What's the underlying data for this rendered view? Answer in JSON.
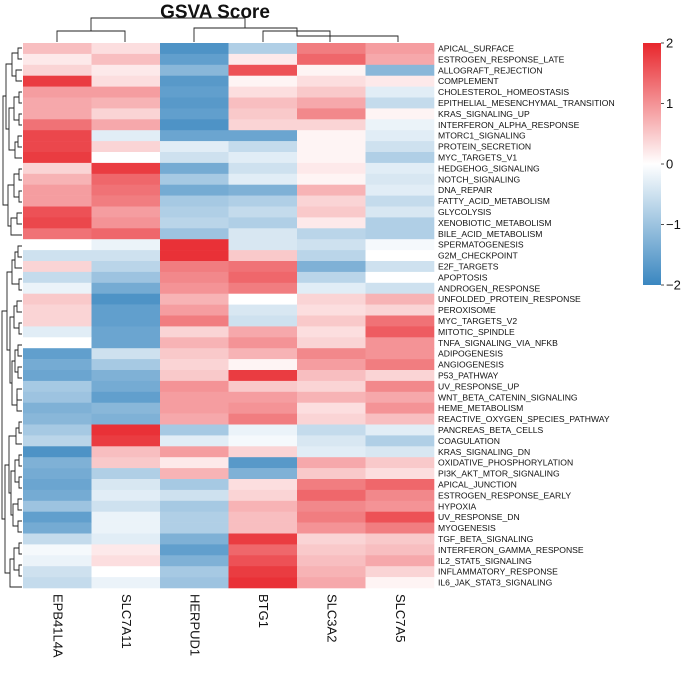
{
  "chart_data": {
    "type": "heatmap",
    "title": "GSVA Score",
    "columns": [
      "EPB41L4A",
      "SLC7A11",
      "HERPUD1",
      "BTG1",
      "SLC3A2",
      "SLC7A5"
    ],
    "rows": [
      "APICAL_SURFACE",
      "ESTROGEN_RESPONSE_LATE",
      "ALLOGRAFT_REJECTION",
      "COMPLEMENT",
      "CHOLESTEROL_HOMEOSTASIS",
      "EPITHELIAL_MESENCHYMAL_TRANSITION",
      "KRAS_SIGNALING_UP",
      "INTERFERON_ALPHA_RESPONSE",
      "MTORC1_SIGNALING",
      "PROTEIN_SECRETION",
      "MYC_TARGETS_V1",
      "HEDGEHOG_SIGNALING",
      "NOTCH_SIGNALING",
      "DNA_REPAIR",
      "FATTY_ACID_METABOLISM",
      "GLYCOLYSIS",
      "XENOBIOTIC_METABOLISM",
      "BILE_ACID_METABOLISM",
      "SPERMATOGENESIS",
      "G2M_CHECKPOINT",
      "E2F_TARGETS",
      "APOPTOSIS",
      "ANDROGEN_RESPONSE",
      "UNFOLDED_PROTEIN_RESPONSE",
      "PEROXISOME",
      "MYC_TARGETS_V2",
      "MITOTIC_SPINDLE",
      "TNFA_SIGNALING_VIA_NFKB",
      "ADIPOGENESIS",
      "ANGIOGENESIS",
      "P53_PATHWAY",
      "UV_RESPONSE_UP",
      "WNT_BETA_CATENIN_SIGNALING",
      "HEME_METABOLISM",
      "REACTIVE_OXYGEN_SPECIES_PATHWAY",
      "PANCREAS_BETA_CELLS",
      "COAGULATION",
      "KRAS_SIGNALING_DN",
      "OXIDATIVE_PHOSPHORYLATION",
      "PI3K_AKT_MTOR_SIGNALING",
      "APICAL_JUNCTION",
      "ESTROGEN_RESPONSE_EARLY",
      "HYPOXIA",
      "UV_RESPONSE_DN",
      "MYOGENESIS",
      "TGF_BETA_SIGNALING",
      "INTERFERON_GAMMA_RESPONSE",
      "IL2_STAT5_SIGNALING",
      "INFLAMMATORY_RESPONSE",
      "IL6_JAK_STAT3_SIGNALING"
    ],
    "values": [
      [
        0.6,
        0.3,
        -1.8,
        -0.8,
        1.2,
        0.9
      ],
      [
        0.2,
        0.6,
        -1.6,
        0.2,
        1.4,
        0.8
      ],
      [
        0.4,
        0.2,
        -1.2,
        1.6,
        0.1,
        -1.2
      ],
      [
        1.8,
        0.3,
        -1.7,
        0.1,
        0.3,
        0.2
      ],
      [
        0.9,
        0.9,
        -1.6,
        0.3,
        0.5,
        -0.3
      ],
      [
        0.8,
        0.7,
        -1.7,
        0.6,
        0.8,
        -0.6
      ],
      [
        0.8,
        0.4,
        -1.6,
        0.5,
        1.1,
        0.1
      ],
      [
        1.3,
        0.8,
        -1.8,
        0.4,
        0.4,
        -0.2
      ],
      [
        1.7,
        -0.3,
        -1.5,
        -1.5,
        0.1,
        -0.3
      ],
      [
        1.7,
        0.4,
        -0.3,
        -0.6,
        0.1,
        -0.5
      ],
      [
        1.8,
        0.0,
        -0.5,
        -0.3,
        0.1,
        -0.8
      ],
      [
        0.4,
        1.8,
        -1.4,
        -0.5,
        0.2,
        -0.3
      ],
      [
        0.7,
        1.4,
        -0.9,
        -0.3,
        0.1,
        -0.4
      ],
      [
        0.9,
        1.3,
        -1.4,
        -1.3,
        0.7,
        -0.3
      ],
      [
        0.9,
        1.2,
        -0.9,
        -0.8,
        0.4,
        -0.6
      ],
      [
        1.6,
        0.9,
        -0.8,
        -0.6,
        0.5,
        -0.4
      ],
      [
        1.7,
        1.0,
        -0.7,
        -0.8,
        0.2,
        -0.8
      ],
      [
        1.3,
        1.4,
        -1.0,
        -0.4,
        -0.7,
        -0.8
      ],
      [
        0.0,
        -0.2,
        1.9,
        -0.4,
        -0.5,
        -0.1
      ],
      [
        -0.5,
        -0.5,
        1.9,
        0.5,
        -0.7,
        0.0
      ],
      [
        0.4,
        -0.7,
        1.2,
        1.3,
        -1.3,
        -0.5
      ],
      [
        -0.6,
        -1.0,
        1.1,
        1.4,
        -0.7,
        0.0
      ],
      [
        -0.2,
        -1.4,
        1.0,
        1.2,
        -0.3,
        -0.5
      ],
      [
        0.5,
        -1.8,
        0.7,
        0.0,
        0.4,
        0.7
      ],
      [
        0.4,
        -1.6,
        0.9,
        -0.4,
        0.3,
        0.4
      ],
      [
        0.4,
        -1.6,
        1.2,
        -0.5,
        0.5,
        1.3
      ],
      [
        -0.3,
        -1.5,
        0.4,
        0.8,
        0.3,
        1.5
      ],
      [
        0.0,
        -1.5,
        0.7,
        1.0,
        0.4,
        1.0
      ],
      [
        -1.6,
        -0.5,
        0.5,
        0.7,
        1.1,
        1.0
      ],
      [
        -1.4,
        -0.9,
        0.4,
        0.1,
        0.9,
        1.2
      ],
      [
        -1.5,
        -1.3,
        0.5,
        1.8,
        0.6,
        0.4
      ],
      [
        -0.9,
        -1.4,
        1.0,
        0.5,
        0.4,
        1.1
      ],
      [
        -1.0,
        -1.6,
        0.9,
        0.9,
        0.7,
        0.8
      ],
      [
        -1.3,
        -1.2,
        0.9,
        1.0,
        0.3,
        1.0
      ],
      [
        -1.2,
        -1.3,
        0.8,
        1.2,
        0.4,
        0.6
      ],
      [
        -0.9,
        1.9,
        -0.9,
        -0.2,
        -0.6,
        -0.3
      ],
      [
        -0.7,
        1.8,
        -0.3,
        -0.1,
        -0.4,
        -0.8
      ],
      [
        -1.8,
        0.6,
        0.9,
        0.4,
        -0.3,
        -0.4
      ],
      [
        -1.3,
        0.5,
        0.2,
        -1.7,
        0.8,
        0.5
      ],
      [
        -1.4,
        -0.8,
        0.7,
        -1.3,
        0.5,
        0.3
      ],
      [
        -1.5,
        -0.4,
        -0.9,
        0.3,
        1.2,
        1.4
      ],
      [
        -1.4,
        -0.3,
        -0.5,
        0.4,
        1.4,
        1.1
      ],
      [
        -1.0,
        -0.5,
        -0.9,
        0.7,
        1.1,
        1.0
      ],
      [
        -1.6,
        -0.2,
        -0.8,
        0.6,
        1.2,
        1.6
      ],
      [
        -1.4,
        -0.2,
        -0.8,
        0.6,
        1.0,
        1.2
      ],
      [
        -0.6,
        -0.3,
        -1.3,
        1.8,
        0.4,
        0.5
      ],
      [
        -0.1,
        0.2,
        -1.6,
        1.4,
        0.5,
        0.6
      ],
      [
        -0.2,
        0.3,
        -1.3,
        1.6,
        0.6,
        0.8
      ],
      [
        -0.5,
        0.0,
        -0.9,
        1.8,
        0.7,
        0.4
      ],
      [
        -0.6,
        -0.2,
        -1.0,
        1.9,
        0.8,
        0.1
      ]
    ],
    "color_scale": {
      "min": -2,
      "mid": 0,
      "max": 2,
      "low_color": "#3a87c0",
      "mid_color": "#ffffff",
      "high_color": "#e8262c"
    },
    "legend": {
      "placement": "right",
      "ticks": [
        "2",
        "1",
        "0",
        "−1",
        "−2"
      ]
    },
    "row_dendrogram": "left",
    "column_dendrogram": "top"
  }
}
